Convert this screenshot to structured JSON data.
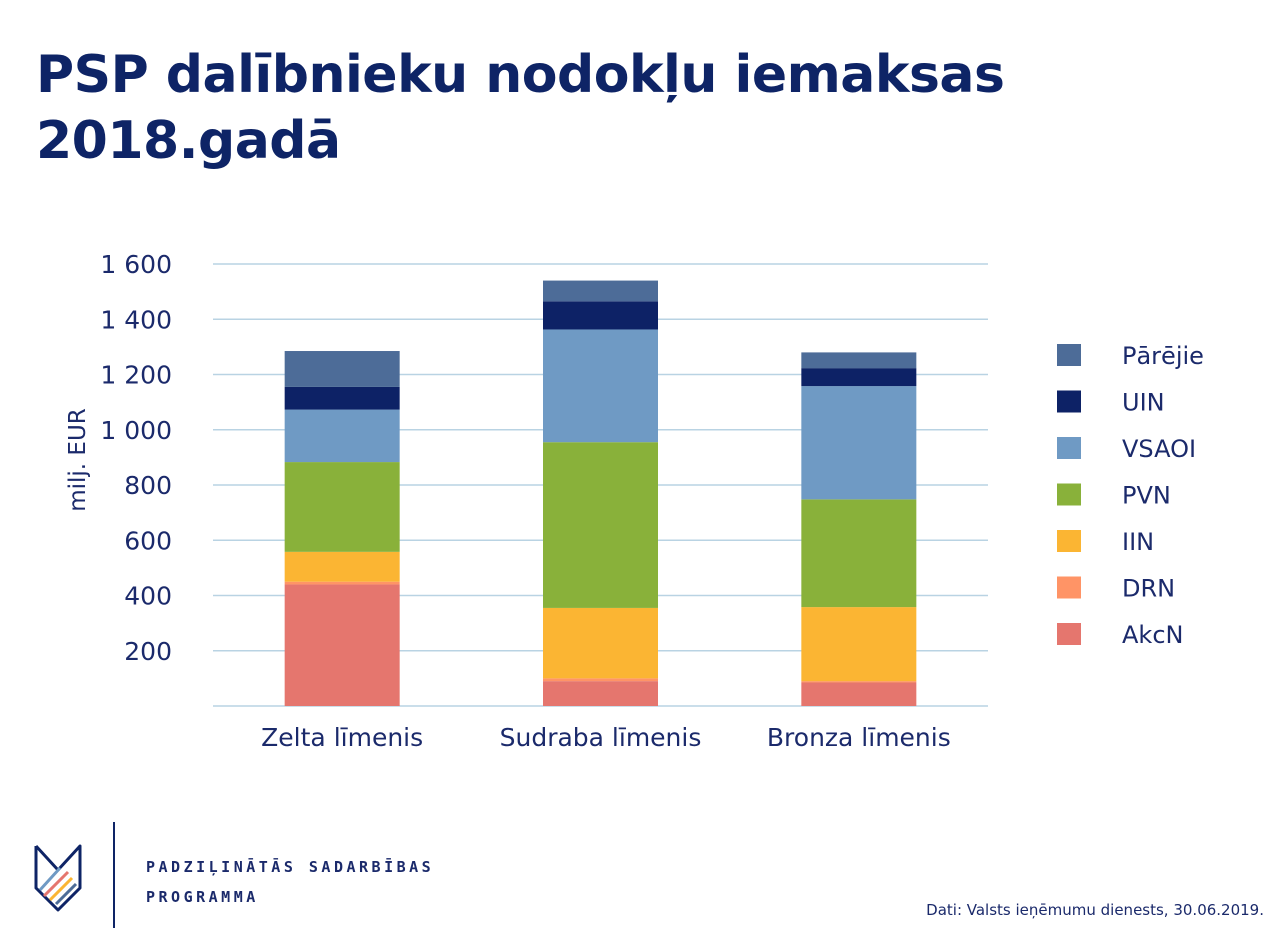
{
  "title": "PSP dalībnieku nodokļu iemaksas 2018.gadā",
  "program": {
    "line1": "PADZIĻINĀTĀS SADARBĪBAS",
    "line2": "PROGRAMMA"
  },
  "source": "Dati: Valsts ieņēmumu dienests, 30.06.2019.",
  "chart_data": {
    "type": "bar",
    "stacked": true,
    "ylabel": "milj. EUR",
    "ylim": [
      0,
      1600
    ],
    "yticks": [
      200,
      400,
      600,
      800,
      1000,
      1200,
      1400,
      1600
    ],
    "ytick_labels": [
      "200",
      "400",
      "600",
      "800",
      "1 000",
      "1 200",
      "1 400",
      "1 600"
    ],
    "grid": true,
    "legend_position": "right",
    "categories": [
      "Zelta līmenis",
      "Sudraba līmenis",
      "Bronza līmenis"
    ],
    "series": [
      {
        "name": "AkcN",
        "color": "#e5766e",
        "values": [
          440,
          90,
          85
        ]
      },
      {
        "name": "DRN",
        "color": "#ff9466",
        "values": [
          10,
          10,
          5
        ]
      },
      {
        "name": "IIN",
        "color": "#fbb533",
        "values": [
          108,
          255,
          268
        ]
      },
      {
        "name": "PVN",
        "color": "#89b13a",
        "values": [
          325,
          600,
          390
        ]
      },
      {
        "name": "VSAOI",
        "color": "#6f9ac4",
        "values": [
          190,
          408,
          410
        ]
      },
      {
        "name": "UIN",
        "color": "#0d2266",
        "values": [
          82,
          102,
          65
        ]
      },
      {
        "name": "Pārējie",
        "color": "#4d6c98",
        "values": [
          130,
          75,
          57
        ]
      }
    ],
    "legend_order": [
      "Pārējie",
      "UIN",
      "VSAOI",
      "PVN",
      "IIN",
      "DRN",
      "AkcN"
    ]
  }
}
